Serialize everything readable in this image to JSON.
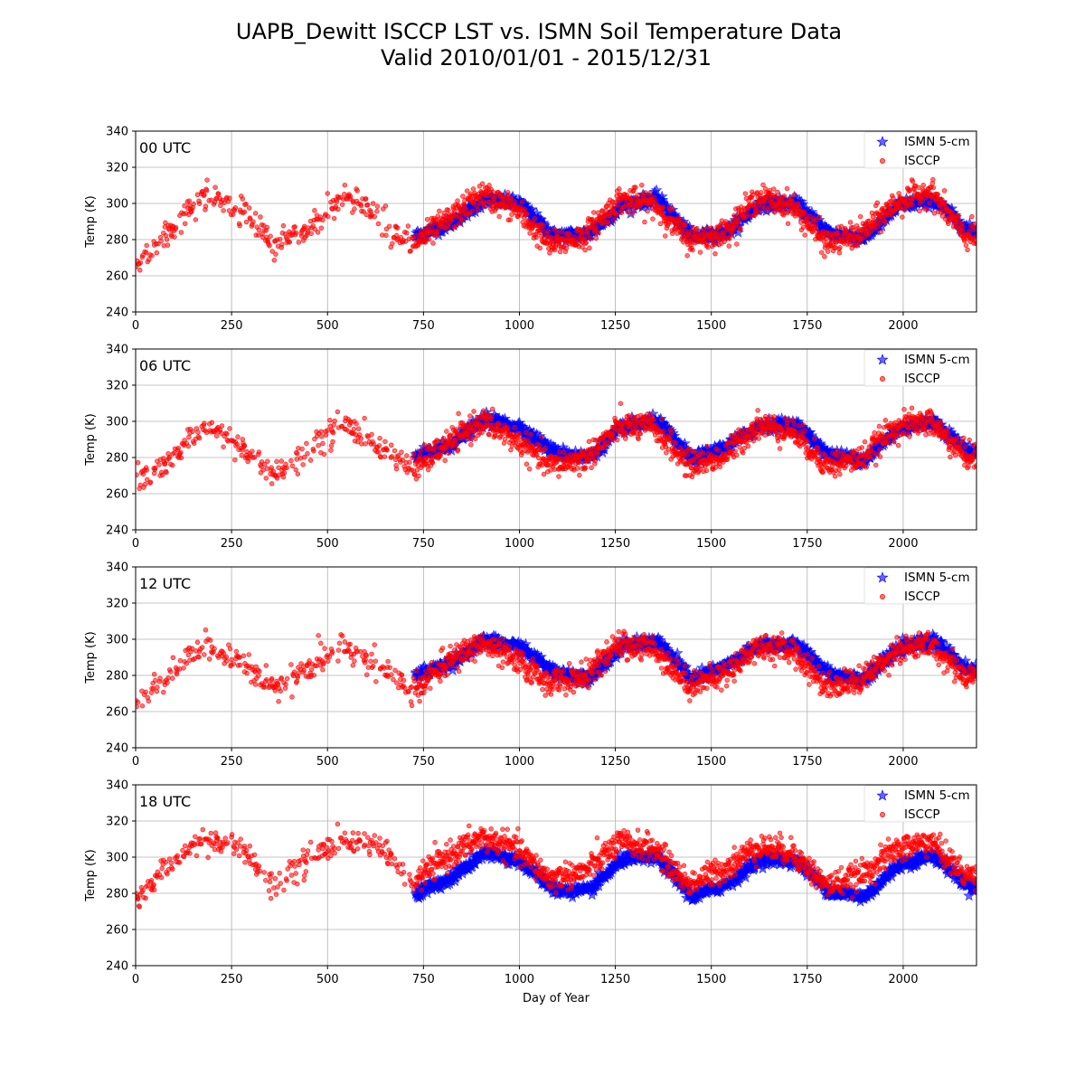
{
  "chart_data": {
    "type": "scatter",
    "title_line1": "UAPB_Dewitt ISCCP LST vs. ISMN Soil Temperature Data",
    "title_line2": "Valid 2010/01/01 - 2015/12/31",
    "xlabel": "Day of Year",
    "ylabel": "Temp (K)",
    "xlim": [
      0,
      2191
    ],
    "ylim": [
      240,
      340
    ],
    "xticks": [
      0,
      250,
      500,
      750,
      1000,
      1250,
      1500,
      1750,
      2000
    ],
    "yticks": [
      240,
      260,
      280,
      300,
      320,
      340
    ],
    "grid": true,
    "legend_placement": "top-right",
    "colors": {
      "ismn": "#0000ff",
      "isccp": "#ff0000"
    },
    "legend": [
      "ISMN 5-cm",
      "ISCCP"
    ],
    "panels": [
      {
        "label": "00 UTC",
        "ismn": {
          "name": "ISMN 5-cm",
          "x_range": [
            730,
            2191
          ],
          "x": [
            730,
            820,
            910,
            1000,
            1090,
            1180,
            1270,
            1360,
            1450,
            1540,
            1630,
            1720,
            1810,
            1900,
            1990,
            2080,
            2170
          ],
          "y": [
            282,
            289,
            302,
            300,
            282,
            283,
            299,
            303,
            281,
            284,
            300,
            300,
            283,
            281,
            299,
            302,
            285
          ]
        },
        "isccp": {
          "name": "ISCCP",
          "x": [
            0,
            90,
            180,
            270,
            360,
            450,
            540,
            630,
            720,
            810,
            900,
            990,
            1080,
            1170,
            1260,
            1350,
            1440,
            1530,
            1620,
            1710,
            1800,
            1890,
            1980,
            2070,
            2160
          ],
          "y": [
            267,
            285,
            305,
            296,
            276,
            285,
            304,
            295,
            277,
            290,
            305,
            297,
            277,
            282,
            302,
            300,
            280,
            283,
            303,
            299,
            278,
            283,
            300,
            307,
            282
          ]
        }
      },
      {
        "label": "06 UTC",
        "ismn": {
          "name": "ISMN 5-cm",
          "x_range": [
            730,
            2191
          ],
          "x": [
            730,
            820,
            910,
            1000,
            1090,
            1180,
            1270,
            1360,
            1450,
            1540,
            1630,
            1720,
            1810,
            1900,
            1990,
            2080,
            2170
          ],
          "y": [
            280,
            287,
            301,
            297,
            283,
            280,
            297,
            300,
            279,
            286,
            298,
            298,
            281,
            279,
            296,
            300,
            283
          ]
        },
        "isccp": {
          "name": "ISCCP",
          "x": [
            0,
            90,
            180,
            270,
            360,
            450,
            540,
            630,
            720,
            810,
            900,
            990,
            1080,
            1170,
            1260,
            1350,
            1440,
            1530,
            1620,
            1710,
            1800,
            1890,
            1980,
            2070,
            2160
          ],
          "y": [
            266,
            280,
            298,
            287,
            270,
            285,
            300,
            287,
            273,
            287,
            300,
            290,
            276,
            279,
            297,
            297,
            276,
            280,
            298,
            295,
            276,
            279,
            297,
            300,
            281
          ]
        }
      },
      {
        "label": "12 UTC",
        "ismn": {
          "name": "ISMN 5-cm",
          "x_range": [
            730,
            2191
          ],
          "x": [
            730,
            820,
            910,
            1000,
            1090,
            1180,
            1270,
            1360,
            1450,
            1540,
            1630,
            1720,
            1810,
            1900,
            1990,
            2080,
            2170
          ],
          "y": [
            280,
            287,
            299,
            296,
            282,
            279,
            296,
            299,
            278,
            285,
            297,
            297,
            281,
            278,
            295,
            299,
            283
          ]
        },
        "isccp": {
          "name": "ISCCP",
          "x": [
            0,
            90,
            180,
            270,
            360,
            450,
            540,
            630,
            720,
            810,
            900,
            990,
            1080,
            1170,
            1260,
            1350,
            1440,
            1530,
            1620,
            1710,
            1800,
            1890,
            1980,
            2070,
            2160
          ],
          "y": [
            263,
            280,
            297,
            287,
            272,
            282,
            298,
            286,
            271,
            287,
            298,
            288,
            276,
            279,
            297,
            295,
            275,
            280,
            296,
            294,
            274,
            277,
            294,
            297,
            280
          ]
        }
      },
      {
        "label": "18 UTC",
        "ismn": {
          "name": "ISMN 5-cm",
          "x_range": [
            730,
            2191
          ],
          "x": [
            730,
            820,
            910,
            1000,
            1090,
            1180,
            1270,
            1360,
            1450,
            1540,
            1630,
            1720,
            1810,
            1900,
            1990,
            2080,
            2170
          ],
          "y": [
            280,
            288,
            302,
            298,
            282,
            281,
            299,
            300,
            278,
            285,
            299,
            298,
            281,
            278,
            296,
            301,
            284
          ]
        },
        "isccp": {
          "name": "ISCCP",
          "x": [
            0,
            90,
            180,
            270,
            360,
            450,
            540,
            630,
            720,
            810,
            900,
            990,
            1080,
            1170,
            1260,
            1350,
            1440,
            1530,
            1620,
            1710,
            1800,
            1890,
            1980,
            2070,
            2160
          ],
          "y": [
            277,
            297,
            310,
            306,
            285,
            300,
            310,
            306,
            286,
            300,
            311,
            305,
            288,
            292,
            308,
            305,
            285,
            293,
            306,
            303,
            284,
            290,
            304,
            309,
            290
          ]
        }
      }
    ]
  }
}
